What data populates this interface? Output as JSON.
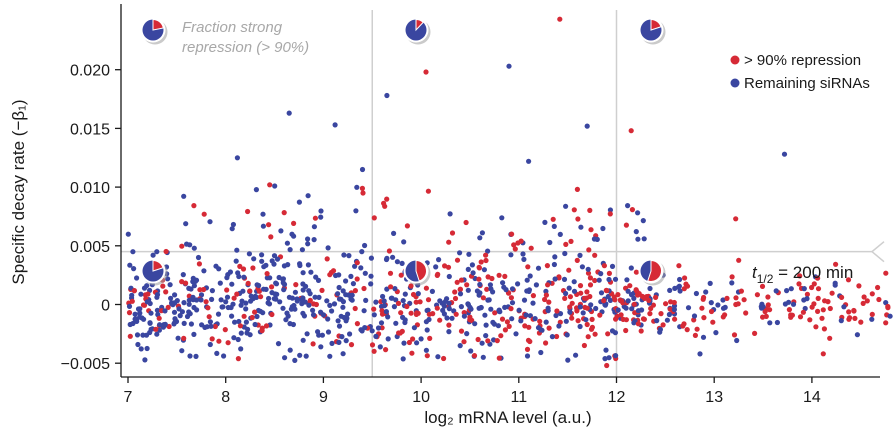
{
  "chart_data": {
    "type": "scatter",
    "xlabel": "log₂ mRNA level (a.u.)",
    "ylabel": "Specific decay rate (−β₁)",
    "xlim": [
      6.75,
      14.85
    ],
    "ylim": [
      -0.0055,
      0.0245
    ],
    "x_ticks": [
      7,
      8,
      9,
      10,
      11,
      12,
      13,
      14
    ],
    "x_tick_labels": [
      "7",
      "8",
      "9",
      "10",
      "11",
      "12",
      "13",
      "14"
    ],
    "y_ticks": [
      -0.005,
      0,
      0.005,
      0.01,
      0.015,
      0.02
    ],
    "y_tick_labels": [
      "−0.005",
      "0",
      "0.005",
      "0.010",
      "0.015",
      "0.020"
    ],
    "grid": false,
    "legend_position": "top-right",
    "series": [
      {
        "name": "> 90% repression",
        "color": "#d62a36"
      },
      {
        "name": "Remaining siRNAs",
        "color": "#3a46a0"
      }
    ],
    "reference_lines": {
      "vertical_x": [
        9.5,
        12
      ],
      "horizontal_y": 0.0045
    },
    "threshold_label": {
      "italic": "t",
      "sub": "1/2",
      "rest": " = 200 min"
    },
    "fraction_label": [
      "Fraction strong",
      "repression (> 90%)"
    ],
    "pie_fractions": {
      "top": [
        0.22,
        0.12,
        0.2
      ],
      "bottom": [
        0.2,
        0.45,
        0.55
      ]
    },
    "notable_points": [
      {
        "x": 11.42,
        "y": 0.0243,
        "series": 0
      },
      {
        "x": 10.05,
        "y": 0.0198,
        "series": 0
      },
      {
        "x": 10.9,
        "y": 0.0203,
        "series": 1
      },
      {
        "x": 9.65,
        "y": 0.0178,
        "series": 1
      },
      {
        "x": 8.65,
        "y": 0.0163,
        "series": 1
      },
      {
        "x": 11.7,
        "y": 0.0152,
        "series": 1
      },
      {
        "x": 12.15,
        "y": 0.0148,
        "series": 0
      },
      {
        "x": 9.12,
        "y": 0.0153,
        "series": 1
      },
      {
        "x": 13.72,
        "y": 0.0128,
        "series": 1
      },
      {
        "x": 8.12,
        "y": 0.0125,
        "series": 1
      },
      {
        "x": 11.1,
        "y": 0.0122,
        "series": 1
      },
      {
        "x": 9.4,
        "y": 0.0115,
        "series": 1
      },
      {
        "x": 11.6,
        "y": 0.0098,
        "series": 0
      },
      {
        "x": 8.45,
        "y": 0.0102,
        "series": 0
      },
      {
        "x": 13.22,
        "y": 0.0073,
        "series": 0
      },
      {
        "x": 14.8,
        "y": -0.001,
        "series": 1
      },
      {
        "x": 14.5,
        "y": -0.0015,
        "series": 0
      },
      {
        "x": 13.95,
        "y": 0.0005,
        "series": 1
      },
      {
        "x": 11.9,
        "y": -0.0052,
        "series": 0
      },
      {
        "x": 7.05,
        "y": 0.0045,
        "series": 1
      }
    ]
  }
}
